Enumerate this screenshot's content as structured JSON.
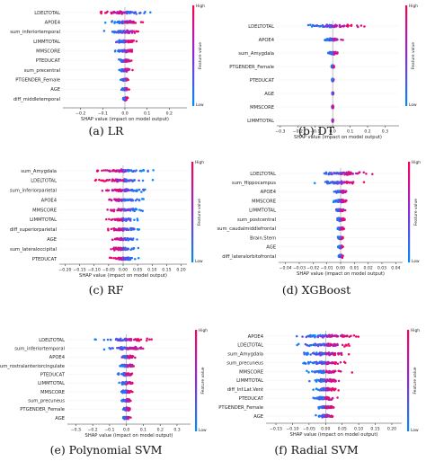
{
  "colors": {
    "high": "#ff0052",
    "low": "#008bfb"
  },
  "colorbar": {
    "high": "High",
    "low": "Low",
    "title": "Feature value"
  },
  "chart_data": [
    {
      "type": "scatter",
      "caption": "(a) LR",
      "xlabel": "SHAP value (impact on model output)",
      "xlim": [
        -0.28,
        0.28
      ],
      "xticks": [
        -0.2,
        -0.1,
        0.0,
        0.1,
        0.2
      ],
      "tick_labels": [
        "−0.2",
        "−0.1",
        "0.0",
        "0.1",
        "0.2"
      ],
      "features": [
        "LDELTOTAL",
        "APOE4",
        "sum_inferiortemporal",
        "LIMMTOTAL",
        "MMSCORE",
        "PTEDUCAT",
        "sum_precentral",
        "PTGENDER_Female",
        "AGE",
        "diff_middletemporal"
      ],
      "spread": [
        0.22,
        0.14,
        0.15,
        0.1,
        0.08,
        0.06,
        0.05,
        0.035,
        0.03,
        0.02
      ]
    },
    {
      "type": "scatter",
      "caption": "(b) DT",
      "xlabel": "SHAP value (impact on model output)",
      "xlim": [
        -0.32,
        0.38
      ],
      "xticks": [
        -0.3,
        -0.2,
        -0.1,
        0.0,
        0.1,
        0.2,
        0.3
      ],
      "tick_labels": [
        "−0.3",
        "−0.2",
        "−0.1",
        "0.0",
        "0.1",
        "0.2",
        "0.3"
      ],
      "features": [
        "LDELTOTAL",
        "APOE4",
        "sum_Amygdala",
        "PTGENDER_Female",
        "PTEDUCAT",
        "AGE",
        "MMSCORE",
        "LIMMTOTAL"
      ],
      "spread": [
        0.32,
        0.1,
        0.06,
        0.015,
        0.01,
        0.008,
        0.006,
        0.004
      ]
    },
    {
      "type": "scatter",
      "caption": "(c) RF",
      "xlabel": "SHAP value (impact on model output)",
      "xlim": [
        -0.22,
        0.22
      ],
      "xticks": [
        -0.2,
        -0.15,
        -0.1,
        -0.05,
        0.0,
        0.05,
        0.1,
        0.15,
        0.2
      ],
      "tick_labels": [
        "−0.20",
        "−0.15",
        "−0.10",
        "−0.05",
        "0.00",
        "0.05",
        "0.10",
        "0.15",
        "0.20"
      ],
      "features": [
        "sum_Amygdala",
        "LDELTOTAL",
        "sum_inferiorparietal",
        "APOE4",
        "MMSCORE",
        "LIMMTOTAL",
        "diff_superiorparietal",
        "AGE",
        "sum_lateraloccipital",
        "PTEDUCAT"
      ],
      "spread": [
        0.2,
        0.17,
        0.15,
        0.13,
        0.12,
        0.11,
        0.1,
        0.09,
        0.09,
        0.08
      ]
    },
    {
      "type": "scatter",
      "caption": "(d) XGBoost",
      "xlabel": "SHAP value (impact on model output)",
      "xlim": [
        -0.045,
        0.045
      ],
      "xticks": [
        -0.04,
        -0.03,
        -0.02,
        -0.01,
        0.0,
        0.01,
        0.02,
        0.03,
        0.04
      ],
      "tick_labels": [
        "−0.04",
        "−0.03",
        "−0.02",
        "−0.01",
        "0.00",
        "0.01",
        "0.02",
        "0.03",
        "0.04"
      ],
      "features": [
        "LDELTOTAL",
        "sum_Hippocampus",
        "APOE4",
        "MMSCORE",
        "LIMMTOTAL",
        "sum_postcentral",
        "sum_caudalmiddlefrontal",
        "Brain.Stem",
        "AGE",
        "diff_lateralorbitofrontal"
      ],
      "spread": [
        0.04,
        0.028,
        0.012,
        0.01,
        0.008,
        0.006,
        0.005,
        0.004,
        0.003,
        0.003
      ]
    },
    {
      "type": "scatter",
      "caption": "(e) Polynomial SVM",
      "xlabel": "SHAP value (impact on model output)",
      "xlim": [
        -0.35,
        0.38
      ],
      "xticks": [
        -0.3,
        -0.2,
        -0.1,
        0.0,
        0.1,
        0.2,
        0.3
      ],
      "tick_labels": [
        "−0.3",
        "−0.2",
        "−0.1",
        "0.0",
        "0.1",
        "0.2",
        "0.3"
      ],
      "features": [
        "LDELTOTAL",
        "sum_inferiortemporal",
        "APOE4",
        "sum_rostralanteriorcingulate",
        "PTEDUCAT",
        "LIMMTOTAL",
        "MMSCORE",
        "sum_precuneus",
        "PTGENDER_Female",
        "AGE"
      ],
      "spread": [
        0.26,
        0.25,
        0.1,
        0.09,
        0.08,
        0.07,
        0.07,
        0.06,
        0.05,
        0.04
      ]
    },
    {
      "type": "scatter",
      "caption": "(f) Radial SVM",
      "xlabel": "SHAP value (impact on model output)",
      "xlim": [
        -0.18,
        0.23
      ],
      "xticks": [
        -0.15,
        -0.1,
        -0.05,
        0.0,
        0.05,
        0.1,
        0.15,
        0.2
      ],
      "tick_labels": [
        "−0.15",
        "−0.10",
        "−0.05",
        "0.00",
        "0.05",
        "0.10",
        "0.15",
        "0.20"
      ],
      "features": [
        "APOE4",
        "LDELTOTAL",
        "sum_Amygdala",
        "sum_precuneus",
        "MMSCORE",
        "LIMMTOTAL",
        "diff_Inf.Lat.Vent",
        "PTEDUCAT",
        "PTGENDER_Female",
        "AGE"
      ],
      "spread": [
        0.19,
        0.17,
        0.15,
        0.13,
        0.1,
        0.09,
        0.08,
        0.07,
        0.06,
        0.05
      ]
    }
  ]
}
